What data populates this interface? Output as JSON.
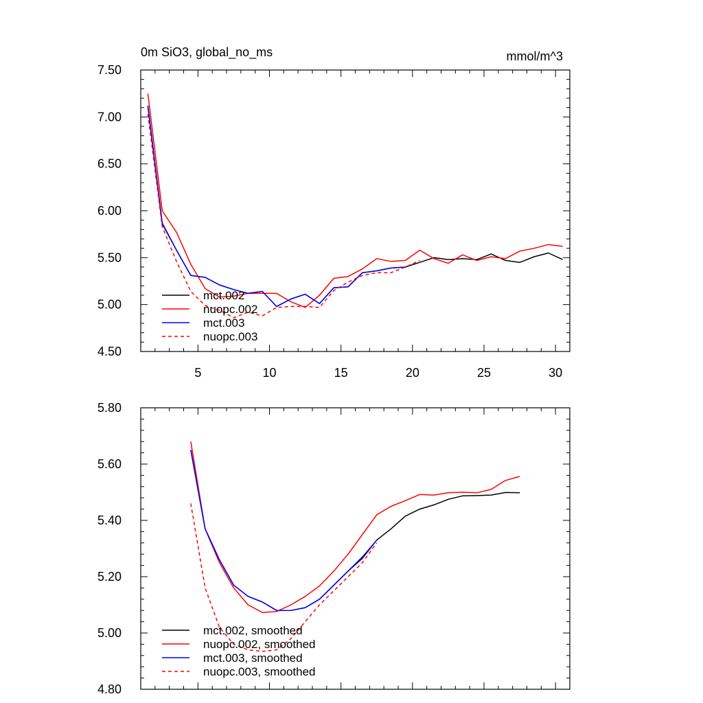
{
  "chart_data": [
    {
      "type": "line",
      "title": "0m SiO3, global_no_ms",
      "units": "mmol/m^3",
      "xlim": [
        1,
        31
      ],
      "ylim": [
        4.5,
        7.5
      ],
      "xticks": [
        5,
        10,
        15,
        20,
        25,
        30
      ],
      "xtick_labels": [
        "5",
        "10",
        "15",
        "20",
        "25",
        "30"
      ],
      "yticks": [
        4.5,
        5.0,
        5.5,
        6.0,
        6.5,
        7.0,
        7.5
      ],
      "ytick_labels": [
        "4.50",
        "5.00",
        "5.50",
        "6.00",
        "6.50",
        "7.00",
        "7.50"
      ],
      "legend_position": "lower-left",
      "series": [
        {
          "name": "mct.002",
          "color": "#000000",
          "dash": "solid",
          "x": [
            1.5,
            2.5,
            3.5,
            4.5,
            5.5,
            6.5,
            7.5,
            8.5,
            9.5,
            10.5,
            11.5,
            12.5,
            13.5,
            14.5,
            15.5,
            16.5,
            17.5,
            18.5,
            19.5,
            20.5,
            21.5,
            22.5,
            23.5,
            24.5,
            25.5,
            26.5,
            27.5,
            28.5,
            29.5,
            30.5
          ],
          "values": [
            7.12,
            5.87,
            5.58,
            5.31,
            5.29,
            5.21,
            5.16,
            5.12,
            5.14,
            4.98,
            5.06,
            5.11,
            5.01,
            5.18,
            5.19,
            5.34,
            5.36,
            5.39,
            5.4,
            5.45,
            5.5,
            5.48,
            5.49,
            5.48,
            5.54,
            5.47,
            5.45,
            5.51,
            5.55,
            5.48
          ]
        },
        {
          "name": "nuopc.002",
          "color": "#ff0000",
          "dash": "solid",
          "x": [
            1.5,
            2.5,
            3.5,
            4.5,
            5.5,
            6.5,
            7.5,
            8.5,
            9.5,
            10.5,
            11.5,
            12.5,
            13.5,
            14.5,
            15.5,
            16.5,
            17.5,
            18.5,
            19.5,
            20.5,
            21.5,
            22.5,
            23.5,
            24.5,
            25.5,
            26.5,
            27.5,
            28.5,
            29.5,
            30.5
          ],
          "values": [
            7.25,
            6.0,
            5.77,
            5.43,
            5.17,
            5.08,
            5.09,
            5.12,
            5.12,
            5.12,
            5.03,
            4.97,
            5.1,
            5.28,
            5.3,
            5.38,
            5.49,
            5.46,
            5.47,
            5.58,
            5.49,
            5.44,
            5.53,
            5.47,
            5.51,
            5.49,
            5.57,
            5.6,
            5.64,
            5.62
          ]
        },
        {
          "name": "mct.003",
          "color": "#0000ff",
          "dash": "solid",
          "x": [
            1.5,
            2.5,
            3.5,
            4.5,
            5.5,
            6.5,
            7.5,
            8.5,
            9.5,
            10.5,
            11.5,
            12.5,
            13.5,
            14.5,
            15.5,
            16.5,
            17.5,
            18.5,
            19.5
          ],
          "values": [
            7.11,
            5.86,
            5.58,
            5.31,
            5.29,
            5.21,
            5.16,
            5.12,
            5.14,
            4.98,
            5.06,
            5.11,
            5.01,
            5.18,
            5.19,
            5.34,
            5.36,
            5.39,
            5.4
          ]
        },
        {
          "name": "nuopc.003",
          "color": "#ff0000",
          "dash": "dashed",
          "x": [
            1.5,
            2.5,
            3.5,
            4.5,
            5.5,
            6.5,
            7.5,
            8.5,
            9.5,
            10.5,
            11.5,
            12.5,
            13.5,
            14.5,
            15.5,
            16.5,
            17.5,
            18.5,
            19.5,
            20.5
          ],
          "values": [
            7.03,
            5.83,
            5.46,
            5.14,
            4.99,
            4.94,
            4.86,
            4.92,
            4.88,
            4.97,
            4.98,
            4.98,
            4.97,
            5.15,
            5.24,
            5.31,
            5.34,
            5.34,
            5.4,
            5.47
          ]
        }
      ]
    },
    {
      "type": "line",
      "title": "",
      "xlim": [
        1,
        31
      ],
      "ylim": [
        4.8,
        5.8
      ],
      "xticks": [
        5,
        10,
        15,
        20,
        25,
        30
      ],
      "xtick_labels": [],
      "yticks": [
        4.8,
        5.0,
        5.2,
        5.4,
        5.6,
        5.8
      ],
      "ytick_labels": [
        "4.80",
        "5.00",
        "5.20",
        "5.40",
        "5.60",
        "5.80"
      ],
      "legend_position": "lower-left",
      "series": [
        {
          "name": "mct.002, smoothed",
          "color": "#000000",
          "dash": "solid",
          "x": [
            4.5,
            5.5,
            6.5,
            7.5,
            8.5,
            9.5,
            10.5,
            11.5,
            12.5,
            13.5,
            14.5,
            15.5,
            16.5,
            17.5,
            18.5,
            19.5,
            20.5,
            21.5,
            22.5,
            23.5,
            24.5,
            25.5,
            26.5,
            27.5
          ],
          "values": [
            5.65,
            5.37,
            5.26,
            5.17,
            5.13,
            5.11,
            5.08,
            5.08,
            5.09,
            5.12,
            5.17,
            5.22,
            5.27,
            5.33,
            5.37,
            5.415,
            5.44,
            5.455,
            5.475,
            5.487,
            5.488,
            5.49,
            5.499,
            5.498
          ]
        },
        {
          "name": "nuopc.002, smoothed",
          "color": "#ff0000",
          "dash": "solid",
          "x": [
            4.5,
            5.5,
            6.5,
            7.5,
            8.5,
            9.5,
            10.5,
            11.5,
            12.5,
            13.5,
            14.5,
            15.5,
            16.5,
            17.5,
            18.5,
            19.5,
            20.5,
            21.5,
            22.5,
            23.5,
            24.5,
            25.5,
            26.5,
            27.5
          ],
          "values": [
            5.68,
            5.37,
            5.25,
            5.16,
            5.1,
            5.073,
            5.076,
            5.1,
            5.13,
            5.167,
            5.22,
            5.28,
            5.35,
            5.42,
            5.45,
            5.47,
            5.492,
            5.49,
            5.498,
            5.5,
            5.498,
            5.51,
            5.542,
            5.556
          ]
        },
        {
          "name": "mct.003, smoothed",
          "color": "#0000ff",
          "dash": "solid",
          "x": [
            4.5,
            5.5,
            6.5,
            7.5,
            8.5,
            9.5,
            10.5,
            11.5,
            12.5,
            13.5,
            14.5,
            15.5,
            16.5,
            17.5
          ],
          "values": [
            5.65,
            5.37,
            5.26,
            5.17,
            5.13,
            5.11,
            5.08,
            5.08,
            5.09,
            5.12,
            5.17,
            5.22,
            5.265,
            5.33
          ]
        },
        {
          "name": "nuopc.003, smoothed",
          "color": "#ff0000",
          "dash": "dashed",
          "x": [
            4.5,
            5.5,
            6.5,
            7.5,
            8.5,
            9.5,
            10.5,
            11.5,
            12.5,
            13.5,
            14.5,
            15.5,
            16.5,
            17.5
          ],
          "values": [
            5.46,
            5.16,
            5.02,
            4.96,
            4.94,
            4.935,
            4.94,
            4.98,
            5.04,
            5.1,
            5.15,
            5.2,
            5.25,
            5.32
          ]
        }
      ]
    }
  ]
}
